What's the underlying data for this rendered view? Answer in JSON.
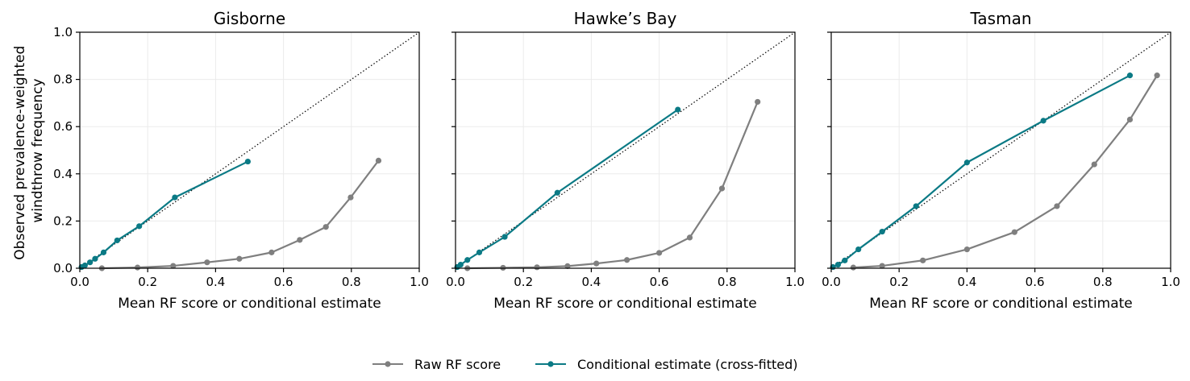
{
  "figure": {
    "ylabel_line1": "Observed prevalence-weighted",
    "ylabel_line2": "windthrow frequency"
  },
  "legend": {
    "items": [
      {
        "label": "Raw RF score",
        "color": "#7f7f7f"
      },
      {
        "label": "Conditional estimate (cross-fitted)",
        "color": "#0b7a85"
      }
    ]
  },
  "chart_data": [
    {
      "type": "line",
      "title": "Gisborne",
      "xlabel": "Mean RF score or conditional estimate",
      "ylabel": "Observed prevalence-weighted windthrow frequency",
      "xlim": [
        0.0,
        1.0
      ],
      "ylim": [
        0.0,
        1.0
      ],
      "xticks": [
        "0.0",
        "0.2",
        "0.4",
        "0.6",
        "0.8",
        "1.0"
      ],
      "yticks": [
        "0.0",
        "0.2",
        "0.4",
        "0.6",
        "0.8",
        "1.0"
      ],
      "grid": true,
      "reference_line": "y = x (dotted)",
      "series": [
        {
          "name": "Raw RF score",
          "color": "#7f7f7f",
          "x": [
            0.065,
            0.17,
            0.275,
            0.375,
            0.47,
            0.565,
            0.648,
            0.725,
            0.798,
            0.88
          ],
          "y": [
            0.0,
            0.003,
            0.01,
            0.025,
            0.04,
            0.067,
            0.12,
            0.175,
            0.3,
            0.456
          ]
        },
        {
          "name": "Conditional estimate (cross-fitted)",
          "color": "#0b7a85",
          "x": [
            0.005,
            0.015,
            0.03,
            0.045,
            0.07,
            0.11,
            0.175,
            0.28,
            0.495
          ],
          "y": [
            0.005,
            0.012,
            0.025,
            0.04,
            0.067,
            0.118,
            0.178,
            0.3,
            0.452
          ]
        }
      ]
    },
    {
      "type": "line",
      "title": "Hawke’s Bay",
      "xlabel": "Mean RF score or conditional estimate",
      "xlim": [
        0.0,
        1.0
      ],
      "ylim": [
        0.0,
        1.0
      ],
      "xticks": [
        "0.0",
        "0.2",
        "0.4",
        "0.6",
        "0.8",
        "1.0"
      ],
      "grid": true,
      "reference_line": "y = x (dotted)",
      "series": [
        {
          "name": "Raw RF score",
          "color": "#7f7f7f",
          "x": [
            0.035,
            0.14,
            0.24,
            0.33,
            0.415,
            0.505,
            0.6,
            0.69,
            0.785,
            0.89
          ],
          "y": [
            0.0,
            0.002,
            0.004,
            0.009,
            0.02,
            0.035,
            0.065,
            0.13,
            0.338,
            0.705
          ]
        },
        {
          "name": "Conditional estimate (cross-fitted)",
          "color": "#0b7a85",
          "x": [
            0.005,
            0.015,
            0.035,
            0.07,
            0.145,
            0.3,
            0.655
          ],
          "y": [
            0.005,
            0.015,
            0.035,
            0.067,
            0.133,
            0.32,
            0.672
          ]
        }
      ]
    },
    {
      "type": "line",
      "title": "Tasman",
      "xlabel": "Mean RF score or conditional estimate",
      "xlim": [
        0.0,
        1.0
      ],
      "ylim": [
        0.0,
        1.0
      ],
      "xticks": [
        "0.0",
        "0.2",
        "0.4",
        "0.6",
        "0.8",
        "1.0"
      ],
      "grid": true,
      "reference_line": "y = x (dotted)",
      "series": [
        {
          "name": "Raw RF score",
          "color": "#7f7f7f",
          "x": [
            0.065,
            0.15,
            0.27,
            0.4,
            0.54,
            0.665,
            0.775,
            0.88,
            0.96
          ],
          "y": [
            0.003,
            0.01,
            0.033,
            0.08,
            0.153,
            0.263,
            0.44,
            0.63,
            0.817
          ]
        },
        {
          "name": "Conditional estimate (cross-fitted)",
          "color": "#0b7a85",
          "x": [
            0.005,
            0.02,
            0.04,
            0.08,
            0.15,
            0.25,
            0.4,
            0.625,
            0.88
          ],
          "y": [
            0.005,
            0.015,
            0.033,
            0.08,
            0.155,
            0.263,
            0.448,
            0.625,
            0.817
          ]
        }
      ]
    }
  ]
}
